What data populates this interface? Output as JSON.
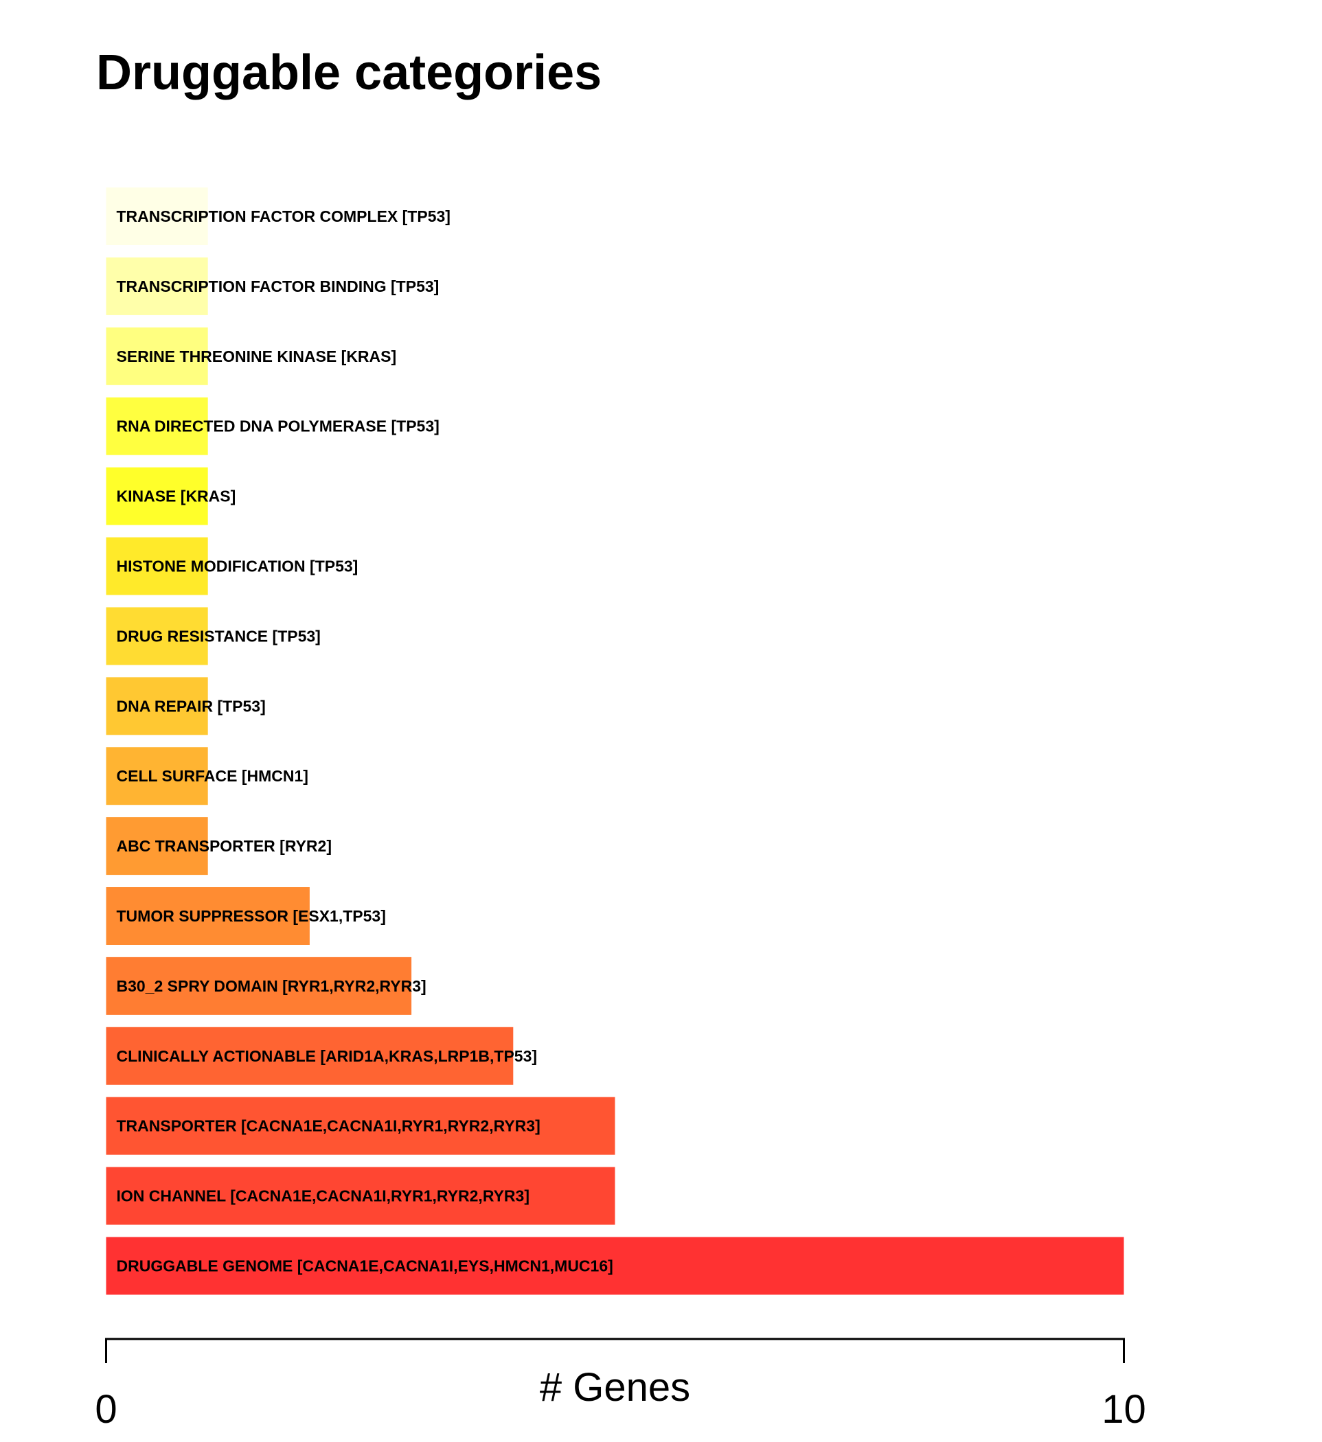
{
  "chart_data": {
    "type": "bar",
    "orientation": "horizontal",
    "title": "Druggable categories",
    "xlabel": "# Genes",
    "ylabel": "",
    "xlim": [
      0,
      10
    ],
    "x_ticks": [
      "0",
      "10"
    ],
    "grid": false,
    "categories": [
      "TRANSCRIPTION FACTOR COMPLEX [TP53]",
      "TRANSCRIPTION FACTOR BINDING [TP53]",
      "SERINE THREONINE KINASE [KRAS]",
      "RNA DIRECTED DNA POLYMERASE [TP53]",
      "KINASE [KRAS]",
      "HISTONE MODIFICATION [TP53]",
      "DRUG RESISTANCE [TP53]",
      "DNA REPAIR [TP53]",
      "CELL SURFACE [HMCN1]",
      "ABC TRANSPORTER [RYR2]",
      "TUMOR SUPPRESSOR [ESX1,TP53]",
      "B30_2 SPRY DOMAIN [RYR1,RYR2,RYR3]",
      "CLINICALLY ACTIONABLE [ARID1A,KRAS,LRP1B,TP53]",
      "TRANSPORTER [CACNA1E,CACNA1I,RYR1,RYR2,RYR3]",
      "ION CHANNEL [CACNA1E,CACNA1I,RYR1,RYR2,RYR3]",
      "DRUGGABLE GENOME [CACNA1E,CACNA1I,EYS,HMCN1,MUC16]"
    ],
    "values": [
      1,
      1,
      1,
      1,
      1,
      1,
      1,
      1,
      1,
      1,
      2,
      3,
      4,
      5,
      5,
      10
    ],
    "colors": [
      "#FFFFE6",
      "#FFFFAA",
      "#FFFF80",
      "#FFFF40",
      "#FFFF2A",
      "#FFEA2A",
      "#FFDC32",
      "#FFC832",
      "#FFB432",
      "#FF9B32",
      "#FF8C32",
      "#FF7D32",
      "#FF6432",
      "#FF5532",
      "#FF4632",
      "#FF3232"
    ]
  }
}
